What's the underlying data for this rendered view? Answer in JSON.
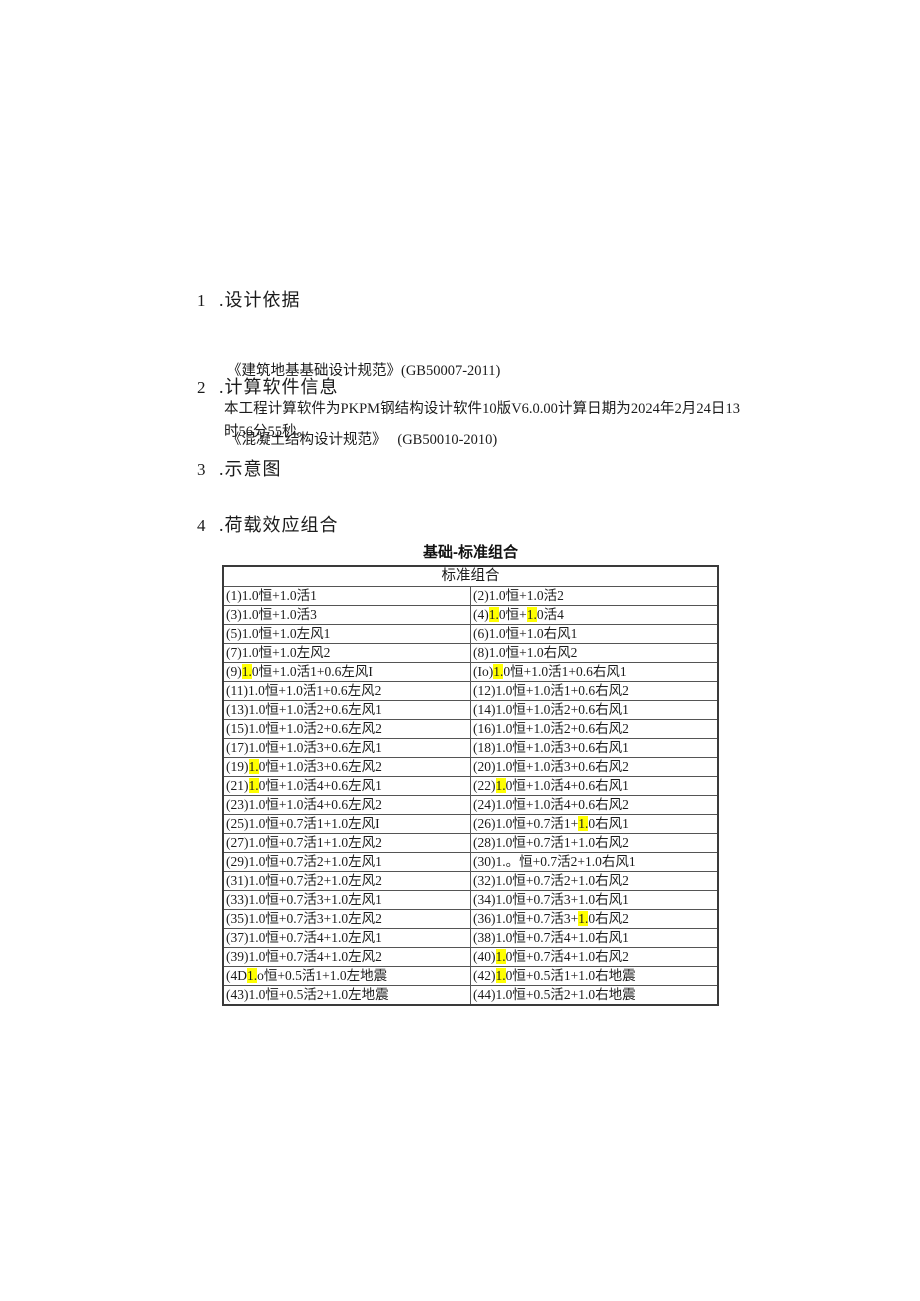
{
  "sections": {
    "s1": {
      "num": "1",
      "title": ".设计依据"
    },
    "refs": [
      "《建筑地基基础设计规范》(GB50007-2011)",
      "《混凝土结构设计规范》　 (GB50010-2010)"
    ],
    "s2": {
      "num": "2",
      "title": ".计算软件信息",
      "body": "本工程计算软件为PKPM钢结构设计软件10版V6.0.00计算日期为2024年2月24日13时56分55秒。"
    },
    "s3": {
      "num": "3",
      "title": ".示意图"
    },
    "s4": {
      "num": "4",
      "title": ".荷载效应组合"
    }
  },
  "table": {
    "title": "基础-标准组合",
    "header": "标准组合",
    "highlight_color": "#ffff00",
    "rows": [
      [
        "(1)1.0恒+1.0活1",
        "(2)1.0恒+1.0活2"
      ],
      [
        "(3)1.0恒+1.0活3",
        "(4){{1.}}0恒+{{1.}}0活4"
      ],
      [
        "(5)1.0恒+1.0左风1",
        "(6)1.0恒+1.0右风1"
      ],
      [
        "(7)1.0恒+1.0左风2",
        "(8)1.0恒+1.0右风2"
      ],
      [
        "(9){{1.}}0恒+1.0活1+0.6左风I",
        "(Io){{1.}}0恒+1.0活1+0.6右风1"
      ],
      [
        "(11)1.0恒+1.0活1+0.6左风2",
        "(12)1.0恒+1.0活1+0.6右风2"
      ],
      [
        "(13)1.0恒+1.0活2+0.6左风1",
        "(14)1.0恒+1.0活2+0.6右风1"
      ],
      [
        "(15)1.0恒+1.0活2+0.6左风2",
        "(16)1.0恒+1.0活2+0.6右风2"
      ],
      [
        "(17)1.0恒+1.0活3+0.6左风1",
        "(18)1.0恒+1.0活3+0.6右风1"
      ],
      [
        "(19){{1.}}0恒+1.0活3+0.6左风2",
        "(20)1.0恒+1.0活3+0.6右风2"
      ],
      [
        "(21){{1.}}0恒+1.0活4+0.6左风1",
        "(22){{1.}}0恒+1.0活4+0.6右风1"
      ],
      [
        "(23)1.0恒+1.0活4+0.6左风2",
        "(24)1.0恒+1.0活4+0.6右风2"
      ],
      [
        "(25)1.0恒+0.7活1+1.0左风I",
        "(26)1.0恒+0.7活1+{{1.}}0右风1"
      ],
      [
        "(27)1.0恒+0.7活1+1.0左风2",
        "(28)1.0恒+0.7活1+1.0右风2"
      ],
      [
        "(29)1.0恒+0.7活2+1.0左风1",
        "(30)1.。恒+0.7活2+1.0右风1"
      ],
      [
        "(31)1.0恒+0.7活2+1.0左风2",
        "(32)1.0恒+0.7活2+1.0右风2"
      ],
      [
        "(33)1.0恒+0.7活3+1.0左风1",
        "(34)1.0恒+0.7活3+1.0右风1"
      ],
      [
        "(35)1.0恒+0.7活3+1.0左风2",
        "(36)1.0恒+0.7活3+{{1.}}0右风2"
      ],
      [
        "(37)1.0恒+0.7活4+1.0左风1",
        "(38)1.0恒+0.7活4+1.0右风1"
      ],
      [
        "(39)1.0恒+0.7活4+1.0左风2",
        "(40){{1.}}0恒+0.7活4+1.0右风2"
      ],
      [
        "(4D{{1.}}o恒+0.5活1+1.0左地震",
        "(42){{1.}}0恒+0.5活1+1.0右地震"
      ],
      [
        "(43)1.0恒+0.5活2+1.0左地震",
        "(44)1.0恒+0.5活2+1.0右地震"
      ]
    ]
  }
}
